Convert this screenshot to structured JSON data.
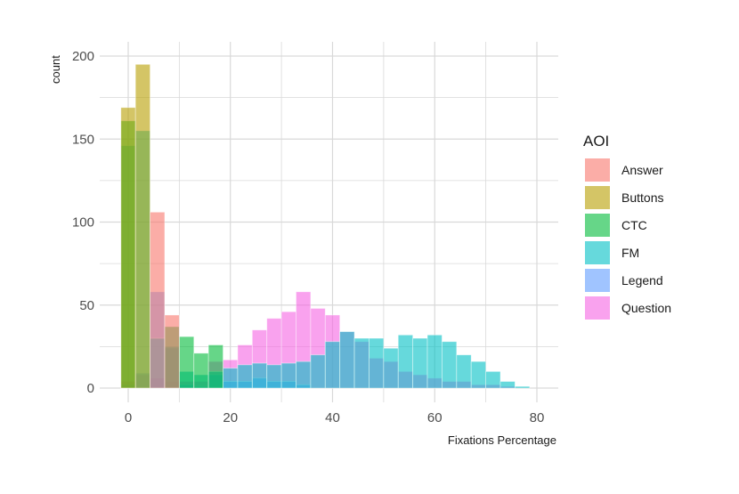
{
  "chart_data": {
    "type": "bar",
    "subtype": "overlaid-histogram",
    "title": "",
    "xlabel": "Fixations Percentage",
    "ylabel": "count",
    "xlim": [
      -1.5,
      80
    ],
    "ylim": [
      0,
      200
    ],
    "x_ticks": [
      0,
      20,
      40,
      60,
      80
    ],
    "y_ticks": [
      0,
      50,
      100,
      150,
      200
    ],
    "bin_width": 2.857,
    "bin_start": -1.43,
    "grid": true,
    "legend_title": "AOI",
    "legend_position": "right",
    "series": [
      {
        "name": "Question",
        "color": "#F564E3",
        "values": [
          4,
          8,
          6,
          4,
          4,
          4,
          16,
          17,
          26,
          35,
          42,
          46,
          58,
          48,
          44,
          34,
          28,
          18,
          16,
          10,
          8,
          6,
          4,
          4,
          2,
          2,
          1,
          0
        ]
      },
      {
        "name": "Legend",
        "color": "#619CFF",
        "values": [
          2,
          9,
          58,
          24,
          2,
          1,
          8,
          4,
          4,
          6,
          4,
          4,
          2,
          0,
          0,
          0,
          0,
          0,
          0,
          0,
          0,
          0,
          0,
          0,
          0,
          0,
          0,
          0
        ]
      },
      {
        "name": "FM",
        "color": "#00BFC4",
        "values": [
          146,
          155,
          30,
          25,
          10,
          8,
          10,
          12,
          14,
          15,
          14,
          15,
          16,
          20,
          28,
          34,
          30,
          30,
          24,
          32,
          30,
          32,
          28,
          20,
          16,
          10,
          4,
          1
        ]
      },
      {
        "name": "CTC",
        "color": "#00BA38",
        "values": [
          161,
          0,
          0,
          37,
          31,
          21,
          26,
          0,
          0,
          0,
          0,
          0,
          0,
          0,
          0,
          0,
          0,
          0,
          0,
          0,
          0,
          0,
          0,
          0,
          0,
          0,
          0,
          0
        ]
      },
      {
        "name": "Buttons",
        "color": "#B79F00",
        "values": [
          169,
          195,
          0,
          0,
          0,
          0,
          0,
          0,
          0,
          0,
          0,
          0,
          0,
          0,
          0,
          0,
          0,
          0,
          0,
          0,
          0,
          0,
          0,
          0,
          0,
          0,
          0,
          0
        ]
      },
      {
        "name": "Answer",
        "color": "#F8766D",
        "values": [
          0,
          0,
          106,
          44,
          0,
          0,
          0,
          0,
          0,
          0,
          0,
          0,
          0,
          0,
          0,
          0,
          0,
          0,
          0,
          0,
          0,
          0,
          0,
          0,
          0,
          0,
          0,
          0
        ]
      }
    ],
    "legend_order": [
      "Answer",
      "Buttons",
      "CTC",
      "FM",
      "Legend",
      "Question"
    ]
  }
}
